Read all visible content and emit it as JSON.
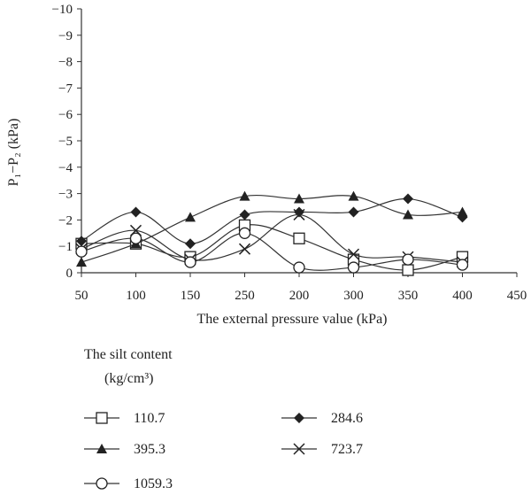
{
  "chart_data": {
    "type": "line",
    "title": "",
    "xlabel": "The external pressure value (kPa)",
    "ylabel": "P₁−P₂ (kPa)",
    "x": [
      "50",
      "100",
      "150",
      "250",
      "200",
      "300",
      "350",
      "400"
    ],
    "xticks_extra": [
      "450"
    ],
    "yticks": [
      "0",
      "−1",
      "−2",
      "−3",
      "−4",
      "−5",
      "−6",
      "−7",
      "−8",
      "−9",
      "−10"
    ],
    "ylim": [
      0,
      -10
    ],
    "legend_title_line1": "The silt content",
    "legend_title_line2": "(kg/cm³)",
    "series": [
      {
        "name": "110.7",
        "marker": "square-open",
        "values": [
          -1.1,
          -1.1,
          -0.6,
          -1.8,
          -1.3,
          -0.5,
          -0.1,
          -0.6
        ]
      },
      {
        "name": "284.6",
        "marker": "diamond-filled",
        "values": [
          -1.2,
          -2.3,
          -1.1,
          -2.2,
          -2.3,
          -2.3,
          -2.8,
          -2.1
        ]
      },
      {
        "name": "395.3",
        "marker": "triangle-filled",
        "values": [
          -0.4,
          -1.1,
          -2.1,
          -2.9,
          -2.8,
          -2.9,
          -2.2,
          -2.3
        ]
      },
      {
        "name": "723.7",
        "marker": "x",
        "values": [
          -0.9,
          -1.6,
          -0.5,
          -0.9,
          -2.2,
          -0.7,
          -0.6,
          -0.4
        ]
      },
      {
        "name": "1059.3",
        "marker": "circle-open",
        "values": [
          -0.8,
          -1.3,
          -0.4,
          -1.5,
          -0.2,
          -0.2,
          -0.5,
          -0.3
        ]
      }
    ],
    "legend_placement": "bottom",
    "grid": false
  }
}
